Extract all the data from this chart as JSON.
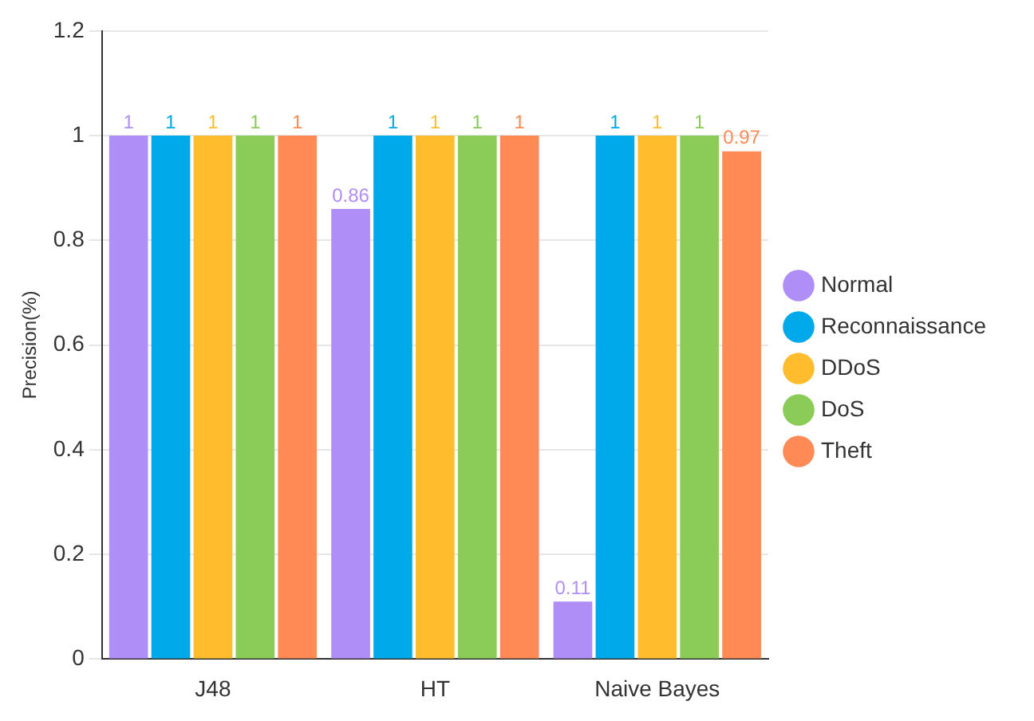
{
  "chart_data": {
    "type": "bar",
    "ylabel": "Precision(%)",
    "categories": [
      "J48",
      "HT",
      "Naive Bayes"
    ],
    "series": [
      {
        "name": "Normal",
        "color": "#b08ef7",
        "values": [
          1,
          0.86,
          0.11
        ]
      },
      {
        "name": "Reconnaissance",
        "color": "#00aaea",
        "values": [
          1,
          1,
          1
        ]
      },
      {
        "name": "DDoS",
        "color": "#ffbd2e",
        "values": [
          1,
          1,
          1
        ]
      },
      {
        "name": "DoS",
        "color": "#8bcc58",
        "values": [
          1,
          1,
          1
        ]
      },
      {
        "name": "Theft",
        "color": "#ff8a56",
        "values": [
          1,
          1,
          0.97
        ]
      }
    ],
    "ylim": [
      0,
      1.2
    ],
    "yticks": [
      0,
      0.2,
      0.4,
      0.6,
      0.8,
      1,
      1.2
    ],
    "grid": "y",
    "legend": "right",
    "data_labels": true
  }
}
